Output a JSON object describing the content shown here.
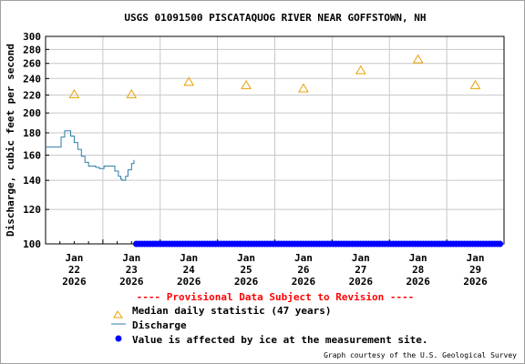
{
  "chart_data": {
    "type": "line",
    "title": "USGS 01091500 PISCATAQUOG RIVER NEAR GOFFSTOWN, NH",
    "ylabel": "Discharge, cubic feet per second",
    "ylim": [
      100,
      300
    ],
    "yscale": "log",
    "yticks": [
      "300",
      "280",
      "260",
      "240",
      "220",
      "200",
      "180",
      "160",
      "140",
      "120",
      "100"
    ],
    "xlim": [
      "2026-01-22 00:00",
      "2026-01-30 00:00"
    ],
    "x_tick_labels": [
      {
        "month": "Jan",
        "day": "22",
        "year": "2026"
      },
      {
        "month": "Jan",
        "day": "23",
        "year": "2026"
      },
      {
        "month": "Jan",
        "day": "24",
        "year": "2026"
      },
      {
        "month": "Jan",
        "day": "25",
        "year": "2026"
      },
      {
        "month": "Jan",
        "day": "26",
        "year": "2026"
      },
      {
        "month": "Jan",
        "day": "27",
        "year": "2026"
      },
      {
        "month": "Jan",
        "day": "28",
        "year": "2026"
      },
      {
        "month": "Jan",
        "day": "29",
        "year": "2026"
      }
    ],
    "grid": true,
    "series": [
      {
        "name": "Median daily statistic (47 years)",
        "marker": "triangle",
        "color": "#e8a000",
        "points": [
          {
            "x": "2026-01-22 12:00",
            "y": 221
          },
          {
            "x": "2026-01-23 12:00",
            "y": 221
          },
          {
            "x": "2026-01-24 12:00",
            "y": 236
          },
          {
            "x": "2026-01-25 12:00",
            "y": 232
          },
          {
            "x": "2026-01-26 12:00",
            "y": 228
          },
          {
            "x": "2026-01-27 12:00",
            "y": 251
          },
          {
            "x": "2026-01-28 12:00",
            "y": 266
          },
          {
            "x": "2026-01-29 12:00",
            "y": 232
          }
        ]
      },
      {
        "name": "Discharge",
        "line": "step",
        "color": "#2e7fa8",
        "points": [
          {
            "x": "2026-01-22 00:00",
            "y": 167
          },
          {
            "x": "2026-01-22 06:00",
            "y": 167
          },
          {
            "x": "2026-01-22 06:30",
            "y": 176
          },
          {
            "x": "2026-01-22 07:30",
            "y": 176
          },
          {
            "x": "2026-01-22 08:00",
            "y": 182
          },
          {
            "x": "2026-01-22 09:30",
            "y": 182
          },
          {
            "x": "2026-01-22 10:30",
            "y": 177
          },
          {
            "x": "2026-01-22 12:00",
            "y": 171
          },
          {
            "x": "2026-01-22 13:30",
            "y": 165
          },
          {
            "x": "2026-01-22 15:00",
            "y": 159
          },
          {
            "x": "2026-01-22 16:30",
            "y": 154
          },
          {
            "x": "2026-01-22 18:00",
            "y": 151
          },
          {
            "x": "2026-01-22 21:00",
            "y": 150
          },
          {
            "x": "2026-01-22 22:30",
            "y": 149
          },
          {
            "x": "2026-01-23 00:00",
            "y": 149
          },
          {
            "x": "2026-01-23 00:30",
            "y": 151
          },
          {
            "x": "2026-01-23 04:00",
            "y": 151
          },
          {
            "x": "2026-01-23 05:00",
            "y": 147
          },
          {
            "x": "2026-01-23 06:30",
            "y": 143
          },
          {
            "x": "2026-01-23 07:30",
            "y": 141
          },
          {
            "x": "2026-01-23 08:00",
            "y": 140
          },
          {
            "x": "2026-01-23 09:30",
            "y": 143
          },
          {
            "x": "2026-01-23 10:30",
            "y": 148
          },
          {
            "x": "2026-01-23 12:00",
            "y": 153
          },
          {
            "x": "2026-01-23 13:00",
            "y": 156
          }
        ]
      },
      {
        "name": "Value is affected by ice at the measurement site.",
        "marker": "dot",
        "color": "#0000ff",
        "y": 100,
        "x_from": "2026-01-23 14:00",
        "x_to": "2026-01-29 23:00"
      }
    ]
  },
  "provisional_note": "---- Provisional Data Subject to Revision ----",
  "legend": {
    "median_label": "Median daily statistic (47 years)",
    "discharge_label": "Discharge",
    "ice_label": "Value is affected by ice at the measurement site."
  },
  "credit": "Graph courtesy of the U.S. Geological Survey",
  "colors": {
    "grid": "#c8c8c8",
    "axes": "#000000",
    "provisional": "#ff0000"
  }
}
